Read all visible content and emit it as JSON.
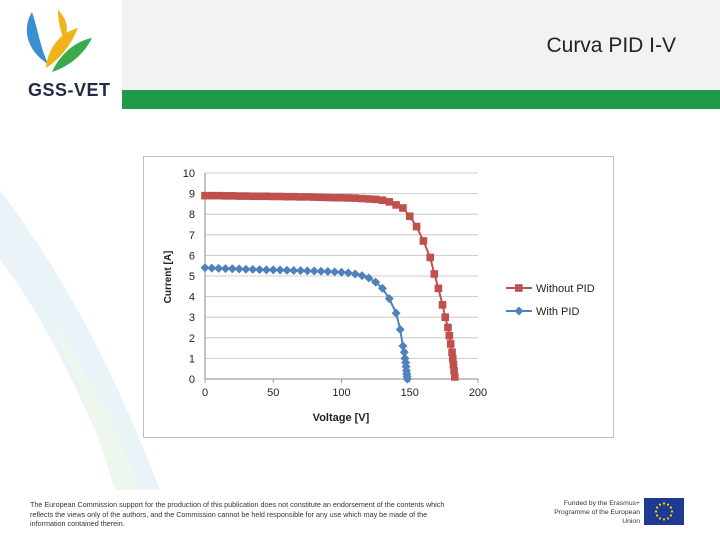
{
  "header": {
    "title": "Curva PID I-V",
    "logo_text": "GSS-VET"
  },
  "colors": {
    "green_bar": "#1e9a48",
    "series_without": "#c0504d",
    "series_with": "#4f81bd"
  },
  "chart_data": {
    "type": "line",
    "xlabel": "Voltage [V]",
    "ylabel": "Current [A]",
    "xlim": [
      0,
      200
    ],
    "ylim": [
      0,
      10
    ],
    "xticks": [
      0,
      50,
      100,
      150,
      200
    ],
    "yticks": [
      0,
      1,
      2,
      3,
      4,
      5,
      6,
      7,
      8,
      9,
      10
    ],
    "grid": "horizontal",
    "legend": "right",
    "series": [
      {
        "name": "Without PID",
        "marker": "square",
        "color": "#c0504d",
        "x": [
          0,
          5,
          10,
          15,
          20,
          25,
          30,
          35,
          40,
          45,
          50,
          55,
          60,
          65,
          70,
          75,
          80,
          85,
          90,
          95,
          100,
          105,
          110,
          115,
          120,
          125,
          130,
          135,
          140,
          145,
          150,
          155,
          160,
          165,
          168,
          171,
          174,
          176,
          178,
          179,
          180,
          181,
          181.5,
          182,
          182.5,
          183
        ],
        "y": [
          8.9,
          8.9,
          8.9,
          8.89,
          8.89,
          8.88,
          8.88,
          8.87,
          8.87,
          8.87,
          8.86,
          8.86,
          8.85,
          8.85,
          8.84,
          8.84,
          8.83,
          8.82,
          8.81,
          8.8,
          8.8,
          8.79,
          8.78,
          8.76,
          8.74,
          8.72,
          8.68,
          8.6,
          8.45,
          8.3,
          7.9,
          7.4,
          6.7,
          5.9,
          5.1,
          4.4,
          3.6,
          3.0,
          2.5,
          2.1,
          1.7,
          1.3,
          1.0,
          0.7,
          0.4,
          0.1
        ]
      },
      {
        "name": "With PID",
        "marker": "diamond",
        "color": "#4f81bd",
        "x": [
          0,
          5,
          10,
          15,
          20,
          25,
          30,
          35,
          40,
          45,
          50,
          55,
          60,
          65,
          70,
          75,
          80,
          85,
          90,
          95,
          100,
          105,
          110,
          115,
          120,
          125,
          130,
          135,
          140,
          143,
          145,
          146,
          146.5,
          147,
          147.3,
          147.6,
          147.8,
          148,
          148.2
        ],
        "y": [
          5.4,
          5.38,
          5.37,
          5.36,
          5.35,
          5.34,
          5.33,
          5.32,
          5.31,
          5.3,
          5.3,
          5.29,
          5.28,
          5.27,
          5.26,
          5.25,
          5.24,
          5.23,
          5.22,
          5.2,
          5.18,
          5.15,
          5.1,
          5.02,
          4.9,
          4.7,
          4.4,
          3.9,
          3.2,
          2.4,
          1.6,
          1.3,
          1.0,
          0.8,
          0.6,
          0.4,
          0.25,
          0.12,
          0.0
        ]
      }
    ]
  },
  "footer": {
    "disclaimer": "The European Commission support for the production of this publication does not constitute an endorsement of the contents which reflects the views only of the authors, and the Commission cannot be held responsible for any use which may be made of the information contained therein.",
    "erasmus": "Funded by the Erasmus+ Programme of the European Union"
  }
}
